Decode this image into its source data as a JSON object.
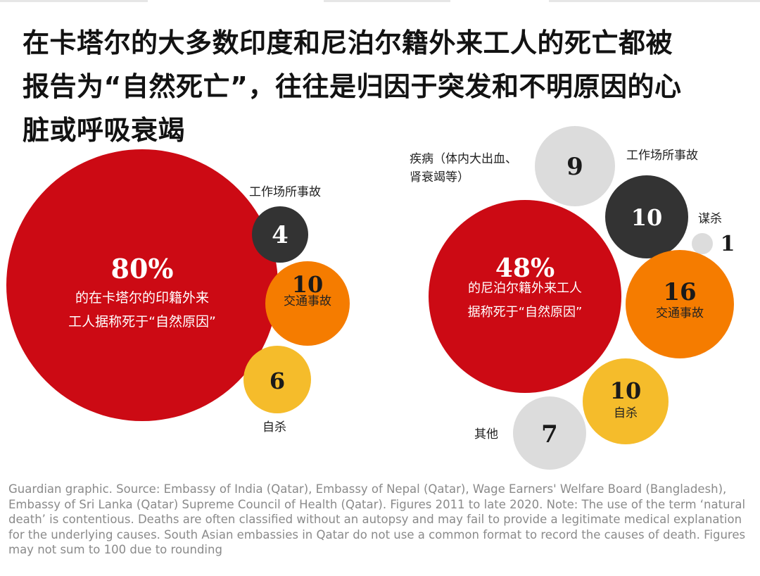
{
  "title_lines": [
    "在卡塔尔的大多数印度和尼泊尔籍外来工人的死亡都被",
    "报告为“自然死亡”，往往是归因于突发和不明原因的心",
    "脏或呼吸衰竭"
  ],
  "footer": "Guardian graphic. Source: Embassy of India (Qatar), Embassy of Nepal (Qatar), Wage Earners' Welfare Board (Bangladesh), Embassy of Sri Lanka (Qatar) Supreme Council of Health (Qatar). Figures 2011 to late 2020. Note: The use of the term ‘natural death’ is contentious. Deaths are often classified without an autopsy and may fail to provide a legitimate medical explanation for the underlying causes. South Asian embassies in Qatar do not use a common format to record the causes of death. Figures may not sum to 100 due to rounding",
  "colors": {
    "red": "#cc0a14",
    "dark": "#333333",
    "orange": "#f57c00",
    "yellow": "#f5bc2b",
    "grey": "#dcdcdc"
  },
  "chart_data": [
    {
      "type": "bubble",
      "unit": "%",
      "series": [
        {
          "value": 80,
          "label": "80%",
          "caption": [
            "的在卡塔尔的印籍外来",
            "工人据称死于“自然原因”"
          ],
          "color": "red"
        },
        {
          "value": 4,
          "label": "4",
          "caption": [
            "工作场所事故"
          ],
          "color": "dark"
        },
        {
          "value": 10,
          "label": "10",
          "caption": [
            "交通事故"
          ],
          "color": "orange"
        },
        {
          "value": 6,
          "label": "6",
          "caption": [
            "自杀"
          ],
          "color": "yellow"
        }
      ]
    },
    {
      "type": "bubble",
      "unit": "%",
      "series": [
        {
          "value": 48,
          "label": "48%",
          "caption": [
            "的尼泊尔籍外来工人",
            "据称死于“自然原因”"
          ],
          "color": "red"
        },
        {
          "value": 9,
          "label": "9",
          "caption": [
            "疾病（体内大出血、",
            "肾衰竭等）"
          ],
          "color": "grey"
        },
        {
          "value": 10,
          "label": "10",
          "caption": [
            "工作场所事故"
          ],
          "color": "dark"
        },
        {
          "value": 1,
          "label": "1",
          "caption": [
            "谋杀"
          ],
          "color": "grey"
        },
        {
          "value": 16,
          "label": "16",
          "caption": [
            "交通事故"
          ],
          "color": "orange"
        },
        {
          "value": 10,
          "label": "10",
          "caption": [
            "自杀"
          ],
          "color": "yellow"
        },
        {
          "value": 7,
          "label": "7",
          "caption": [
            "其他"
          ],
          "color": "grey"
        }
      ]
    }
  ]
}
